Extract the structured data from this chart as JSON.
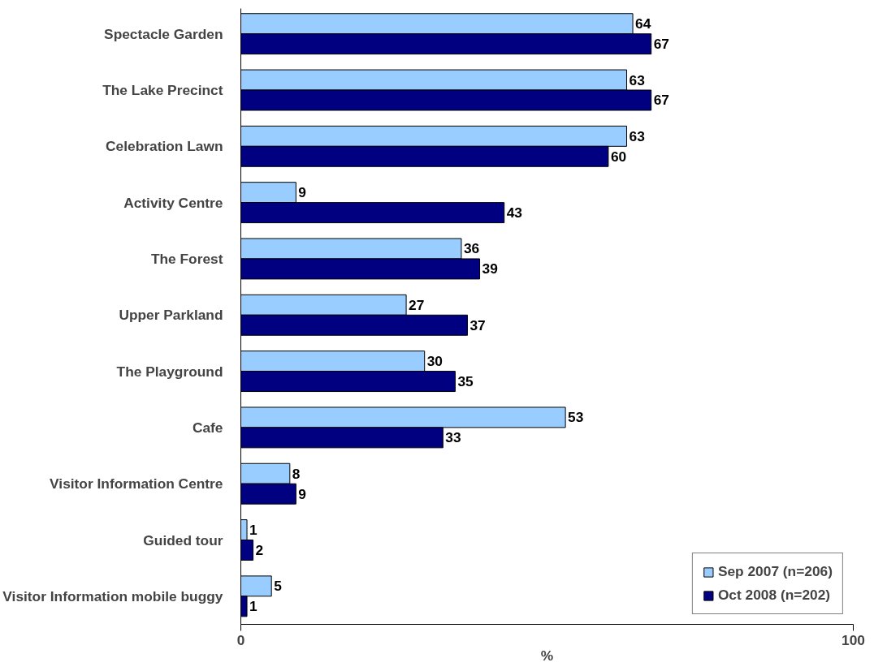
{
  "chart_data": {
    "type": "bar",
    "orientation": "horizontal",
    "xlabel": "%",
    "categories": [
      "Spectacle Garden",
      "The Lake Precinct",
      "Celebration Lawn",
      "Activity Centre",
      "The Forest",
      "Upper Parkland",
      "The Playground",
      "Cafe",
      "Visitor Information Centre",
      "Guided tour",
      "Visitor Information mobile buggy"
    ],
    "series": [
      {
        "name": "Sep 2007 (n=206)",
        "color": "#99ccff",
        "values": [
          64,
          63,
          63,
          9,
          36,
          27,
          30,
          53,
          8,
          1,
          5
        ]
      },
      {
        "name": "Oct 2008 (n=202)",
        "color": "#000080",
        "values": [
          67,
          67,
          60,
          43,
          39,
          37,
          35,
          33,
          9,
          2,
          1
        ]
      }
    ],
    "xlim": [
      0,
      100
    ],
    "xticks": [
      0,
      100
    ],
    "data_labels": true,
    "legend": "bottom right",
    "grid": false
  }
}
